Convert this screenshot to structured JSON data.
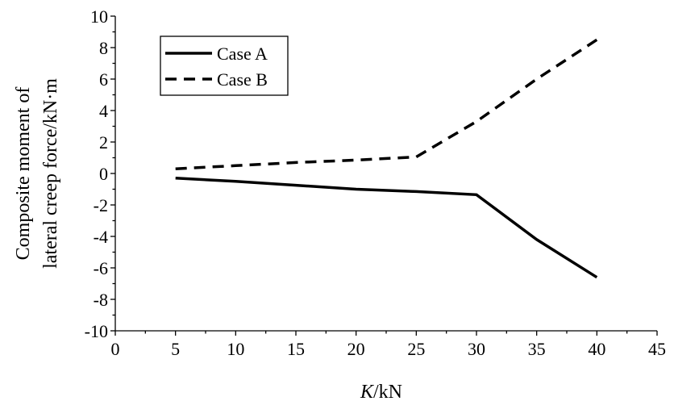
{
  "chart_data": {
    "type": "line",
    "title": "",
    "xlabel_italic": "K",
    "xlabel_rest": "/kN",
    "ylabel_lines": [
      "Composite moment of",
      "lateral creep force/kN·m"
    ],
    "xlim": [
      0,
      45
    ],
    "ylim": [
      -10,
      10
    ],
    "x_major_ticks": [
      0,
      5,
      10,
      15,
      20,
      25,
      30,
      35,
      40,
      45
    ],
    "x_tick_labels": [
      "0",
      "5",
      "10",
      "15",
      "20",
      "25",
      "30",
      "35",
      "40",
      "45"
    ],
    "y_major_ticks": [
      -10,
      -8,
      -6,
      -4,
      -2,
      0,
      2,
      4,
      6,
      8,
      10
    ],
    "y_tick_labels": [
      "-10",
      "-8",
      "-6",
      "-4",
      "-2",
      "0",
      "2",
      "4",
      "6",
      "8",
      "10"
    ],
    "x_minor_step": 2.5,
    "y_minor_step": 1,
    "grid": false,
    "legend_position": "top-left",
    "series": [
      {
        "name": "Case A",
        "style": "solid",
        "color": "#000000",
        "x": [
          5,
          10,
          15,
          20,
          25,
          30,
          35,
          40
        ],
        "y": [
          -0.3,
          -0.5,
          -0.75,
          -1.0,
          -1.15,
          -1.35,
          -4.2,
          -6.6
        ]
      },
      {
        "name": "Case B",
        "style": "dashed",
        "color": "#000000",
        "x": [
          5,
          10,
          15,
          20,
          25,
          30,
          35,
          40
        ],
        "y": [
          0.3,
          0.5,
          0.7,
          0.85,
          1.05,
          3.3,
          6.0,
          8.5
        ]
      }
    ]
  }
}
